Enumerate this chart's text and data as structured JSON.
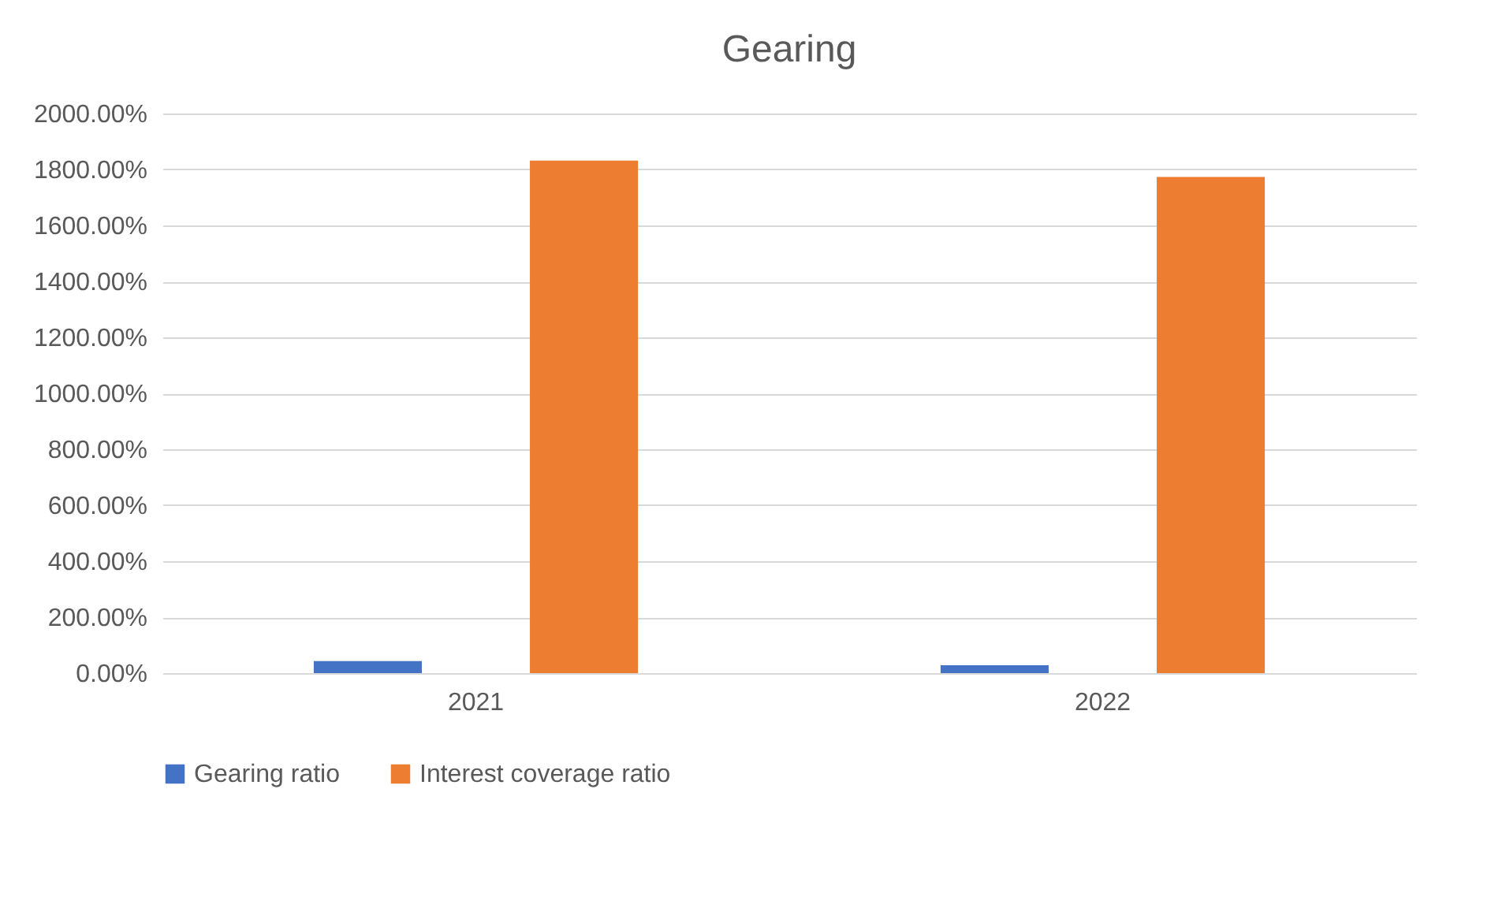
{
  "chart_data": {
    "type": "bar",
    "title": "Gearing",
    "categories": [
      "2021",
      "2022"
    ],
    "series": [
      {
        "name": "Gearing ratio",
        "color": "#4472c4",
        "values": [
          43,
          28
        ]
      },
      {
        "name": "Interest coverage ratio",
        "color": "#ed7d31",
        "values": [
          1832,
          1773
        ]
      }
    ],
    "ylim": [
      0,
      2000
    ],
    "yticks": [
      {
        "value": 0,
        "label": "0.00%"
      },
      {
        "value": 200,
        "label": "200.00%"
      },
      {
        "value": 400,
        "label": "400.00%"
      },
      {
        "value": 600,
        "label": "600.00%"
      },
      {
        "value": 800,
        "label": "800.00%"
      },
      {
        "value": 1000,
        "label": "1000.00%"
      },
      {
        "value": 1200,
        "label": "1200.00%"
      },
      {
        "value": 1400,
        "label": "1400.00%"
      },
      {
        "value": 1600,
        "label": "1600.00%"
      },
      {
        "value": 1800,
        "label": "1800.00%"
      },
      {
        "value": 2000,
        "label": "2000.00%"
      }
    ],
    "grid": "y",
    "legend": "bottom"
  }
}
